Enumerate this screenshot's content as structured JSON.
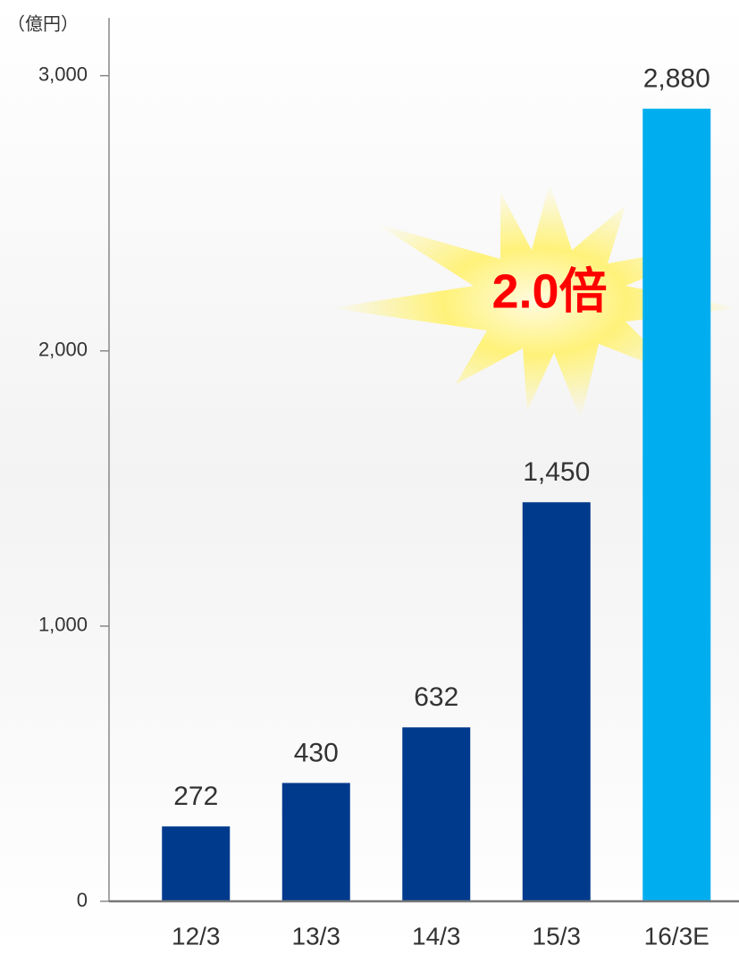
{
  "chart_data": {
    "type": "bar",
    "unit_label": "（億円）",
    "categories": [
      "12/3",
      "13/3",
      "14/3",
      "15/3",
      "16/3E"
    ],
    "values": [
      272,
      430,
      632,
      1450,
      2880
    ],
    "value_labels": [
      "272",
      "430",
      "632",
      "1,450",
      "2,880"
    ],
    "colors": [
      "#003a8c",
      "#003a8c",
      "#003a8c",
      "#003a8c",
      "#00aeef"
    ],
    "ylim": [
      0,
      3210
    ],
    "yticks": [
      0,
      {
        "value": 1000,
        "label": "1,000"
      },
      {
        "value": 2000,
        "label": "2,000"
      },
      {
        "value": 3000,
        "label": "3,000"
      }
    ],
    "annotation": "2.0倍"
  }
}
